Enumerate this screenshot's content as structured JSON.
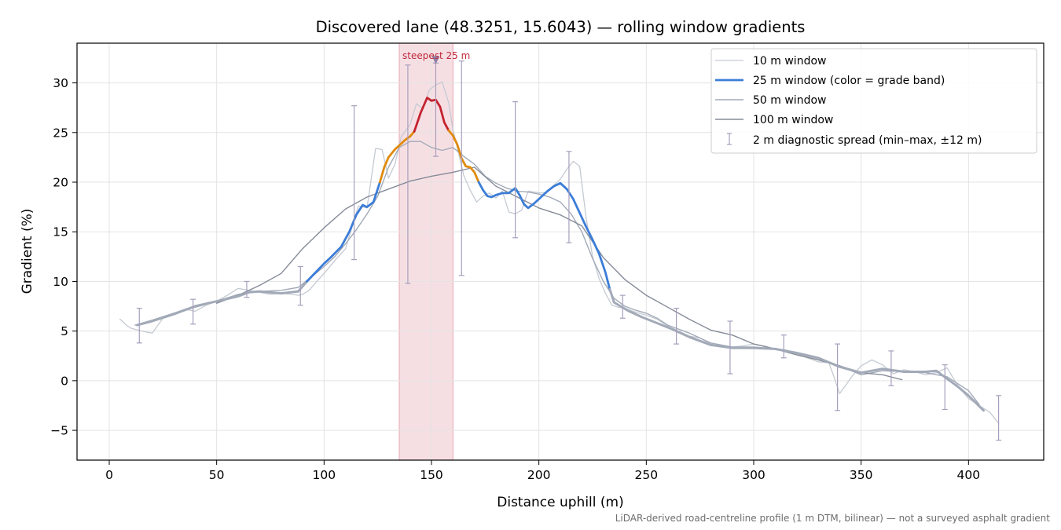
{
  "chart_data": {
    "type": "line",
    "title": "Discovered lane (48.3251, 15.6043) — rolling window gradients",
    "xlabel": "Distance uphill (m)",
    "ylabel": "Gradient (%)",
    "xlim": [
      -15,
      435
    ],
    "ylim": [
      -8,
      34
    ],
    "x_ticks": [
      0,
      50,
      100,
      150,
      200,
      250,
      300,
      350,
      400
    ],
    "y_ticks": [
      -5,
      0,
      5,
      10,
      15,
      20,
      25,
      30
    ],
    "y_tick_labels": [
      "−5",
      "0",
      "5",
      "10",
      "15",
      "20",
      "25",
      "30"
    ],
    "grid": true,
    "legend_position": "top-right",
    "footnote": "LiDAR-derived road-centreline profile (1 m DTM, bilinear) — not a surveyed asphalt gradient",
    "highlight": {
      "x_start": 135,
      "x_end": 160,
      "label": "steepest 25 m",
      "marker_x": 152,
      "marker_y": 32.3
    },
    "colors": {
      "w10": "#c5cad3",
      "w50": "#a2aab8",
      "w100": "#858b98",
      "band_easy": "#a2aab8",
      "band_moderate": "#3b7dd8",
      "band_steep": "#e08a0b",
      "band_extreme": "#c4232f",
      "errorbar": "#a79fbd",
      "highlight": "#f3d4da",
      "highlight_edge": "#e6a8b4",
      "marker": "#8c7fa8"
    },
    "grade_bands": [
      {
        "name": "easy",
        "min": -100,
        "max": 10
      },
      {
        "name": "moderate",
        "min": 10,
        "max": 20
      },
      {
        "name": "steep",
        "min": 20,
        "max": 25
      },
      {
        "name": "extreme",
        "min": 25,
        "max": 100
      }
    ],
    "series": [
      {
        "name": "10 m window",
        "key": "w10",
        "x": [
          5,
          8,
          10,
          15,
          20,
          25,
          30,
          35,
          40,
          45,
          50,
          55,
          60,
          65,
          70,
          75,
          80,
          85,
          88,
          90,
          93,
          97,
          100,
          105,
          110,
          113,
          116,
          120,
          124,
          127,
          130,
          133,
          136,
          140,
          143,
          146,
          149,
          152,
          155,
          158,
          160,
          162,
          165,
          168,
          171,
          174,
          177,
          180,
          183,
          186,
          189,
          192,
          195,
          198,
          201,
          204,
          207,
          210,
          213,
          216,
          219,
          222,
          225,
          228,
          231,
          234,
          237,
          240,
          245,
          250,
          255,
          260,
          265,
          270,
          275,
          280,
          285,
          290,
          295,
          300,
          305,
          310,
          315,
          320,
          325,
          330,
          335,
          338,
          340,
          343,
          346,
          350,
          355,
          360,
          365,
          370,
          375,
          380,
          385,
          390,
          395,
          400,
          405,
          410,
          414
        ],
        "y": [
          6.2,
          5.6,
          5.3,
          5.0,
          4.8,
          6.3,
          6.8,
          7.2,
          7.0,
          7.6,
          8.0,
          8.6,
          9.3,
          9.1,
          8.9,
          8.7,
          8.8,
          8.7,
          8.6,
          8.7,
          9.1,
          10.1,
          10.8,
          12.1,
          13.3,
          15.5,
          17.6,
          17.4,
          23.4,
          23.3,
          20.4,
          21.8,
          24.6,
          25.8,
          27.9,
          27.4,
          29.3,
          29.8,
          30.1,
          28.0,
          25.3,
          23.5,
          20.7,
          19.2,
          18.0,
          18.6,
          18.9,
          18.4,
          19.1,
          17.0,
          16.8,
          17.2,
          19.1,
          19.0,
          18.9,
          19.0,
          19.7,
          20.3,
          21.3,
          22.1,
          21.6,
          16.4,
          12.5,
          10.3,
          8.8,
          7.6,
          7.4,
          7.3,
          6.9,
          6.6,
          6.2,
          5.5,
          5.0,
          4.5,
          4.3,
          3.7,
          3.4,
          3.4,
          3.5,
          3.7,
          3.5,
          3.2,
          3.1,
          2.7,
          2.3,
          1.9,
          1.8,
          0.0,
          -1.3,
          -0.4,
          0.5,
          1.5,
          2.1,
          1.6,
          0.7,
          1.1,
          0.9,
          0.6,
          0.8,
          1.3,
          -0.5,
          -1.8,
          -2.5,
          -3.2,
          -4.3
        ]
      },
      {
        "name": "25 m window (color = grade band)",
        "key": "w25",
        "x": [
          13,
          20,
          30,
          40,
          50,
          60,
          65,
          70,
          80,
          88,
          92,
          96,
          100,
          103,
          108,
          112,
          115,
          118,
          120,
          123,
          126,
          128,
          130,
          133,
          136,
          138,
          140,
          142,
          145,
          148,
          150,
          152,
          154,
          156,
          158,
          160,
          162,
          164,
          166,
          168,
          170,
          172,
          174,
          176,
          178,
          180,
          183,
          186,
          189,
          191,
          193,
          195,
          198,
          201,
          204,
          207,
          210,
          213,
          216,
          219,
          222,
          225,
          228,
          231,
          233,
          235,
          238,
          242,
          248,
          255,
          262,
          270,
          280,
          290,
          300,
          310,
          320,
          330,
          340,
          350,
          360,
          370,
          380,
          385,
          390,
          395,
          400,
          407
        ],
        "y": [
          5.6,
          6.0,
          6.7,
          7.5,
          8.0,
          8.5,
          8.9,
          9.0,
          8.8,
          9.0,
          10.0,
          10.9,
          11.8,
          12.4,
          13.5,
          15.1,
          16.7,
          17.7,
          17.5,
          18.0,
          20.0,
          21.5,
          22.5,
          23.3,
          23.9,
          24.3,
          24.6,
          25.1,
          27.0,
          28.5,
          28.2,
          28.3,
          27.6,
          26.0,
          25.2,
          24.7,
          23.8,
          22.4,
          21.6,
          21.5,
          21.0,
          20.0,
          19.2,
          18.6,
          18.5,
          18.7,
          18.9,
          18.9,
          19.4,
          18.7,
          17.8,
          17.4,
          17.9,
          18.5,
          19.1,
          19.6,
          19.9,
          19.3,
          18.3,
          16.9,
          15.5,
          14.2,
          12.8,
          10.9,
          9.2,
          7.9,
          7.5,
          7.0,
          6.4,
          5.8,
          5.2,
          4.4,
          3.6,
          3.3,
          3.3,
          3.2,
          2.8,
          2.3,
          1.4,
          0.8,
          1.2,
          0.9,
          0.9,
          1.0,
          0.2,
          -0.6,
          -1.5,
          -3.0
        ]
      },
      {
        "name": "50 m window",
        "key": "w50",
        "x": [
          12,
          20,
          30,
          40,
          50,
          60,
          70,
          80,
          88,
          95,
          100,
          105,
          110,
          115,
          120,
          125,
          130,
          135,
          140,
          145,
          150,
          155,
          160,
          165,
          170,
          175,
          180,
          185,
          190,
          195,
          200,
          205,
          210,
          215,
          220,
          225,
          230,
          235,
          240,
          245,
          250,
          255,
          260,
          270,
          280,
          290,
          300,
          310,
          320,
          330,
          340,
          350,
          360,
          370,
          380,
          390,
          400,
          405
        ],
        "y": [
          5.6,
          6.1,
          6.8,
          7.4,
          8.0,
          8.7,
          9.0,
          9.1,
          9.4,
          10.6,
          11.5,
          12.5,
          13.8,
          15.2,
          16.8,
          18.6,
          21.5,
          23.5,
          24.1,
          24.1,
          23.5,
          23.2,
          23.5,
          22.6,
          21.8,
          20.6,
          19.9,
          19.4,
          19.1,
          19.0,
          18.8,
          18.5,
          18.0,
          16.8,
          15.0,
          12.3,
          10.0,
          8.3,
          7.5,
          7.1,
          6.8,
          6.3,
          5.6,
          4.8,
          3.8,
          3.4,
          3.4,
          3.2,
          2.8,
          2.3,
          1.5,
          0.6,
          1.0,
          0.9,
          0.8,
          0.4,
          -1.0,
          -2.4
        ]
      },
      {
        "name": "100 m window",
        "key": "w100",
        "x": [
          50,
          60,
          70,
          80,
          90,
          100,
          110,
          120,
          130,
          140,
          150,
          160,
          170,
          180,
          190,
          200,
          210,
          220,
          230,
          240,
          250,
          260,
          270,
          280,
          290,
          300,
          310,
          320,
          330,
          340,
          350,
          360,
          369
        ],
        "y": [
          7.8,
          8.6,
          9.6,
          10.8,
          13.3,
          15.4,
          17.3,
          18.5,
          19.3,
          20.1,
          20.6,
          21.0,
          21.5,
          19.6,
          18.5,
          17.4,
          16.7,
          15.6,
          12.4,
          10.2,
          8.6,
          7.4,
          6.2,
          5.1,
          4.6,
          3.7,
          3.2,
          2.6,
          2.1,
          1.5,
          0.8,
          0.6,
          0.1
        ]
      }
    ],
    "diagnostic_spread": {
      "name": "2 m diagnostic spread (min–max, ±12 m)",
      "points": [
        {
          "x": 14,
          "min": 3.8,
          "max": 7.3
        },
        {
          "x": 39,
          "min": 5.7,
          "max": 8.2
        },
        {
          "x": 64,
          "min": 8.4,
          "max": 10.0
        },
        {
          "x": 89,
          "min": 7.6,
          "max": 11.5
        },
        {
          "x": 114,
          "min": 12.2,
          "max": 27.7
        },
        {
          "x": 139,
          "min": 9.8,
          "max": 31.8
        },
        {
          "x": 152,
          "min": 22.6,
          "max": 32.0
        },
        {
          "x": 164,
          "min": 10.6,
          "max": 32.2
        },
        {
          "x": 189,
          "min": 14.4,
          "max": 28.1
        },
        {
          "x": 214,
          "min": 13.9,
          "max": 23.1
        },
        {
          "x": 239,
          "min": 6.3,
          "max": 8.6
        },
        {
          "x": 264,
          "min": 3.7,
          "max": 7.3
        },
        {
          "x": 289,
          "min": 0.7,
          "max": 6.0
        },
        {
          "x": 314,
          "min": 2.3,
          "max": 4.6
        },
        {
          "x": 339,
          "min": -3.0,
          "max": 3.7
        },
        {
          "x": 364,
          "min": -0.5,
          "max": 3.0
        },
        {
          "x": 389,
          "min": -2.9,
          "max": 1.6
        },
        {
          "x": 414,
          "min": -6.0,
          "max": -1.5
        }
      ]
    }
  }
}
